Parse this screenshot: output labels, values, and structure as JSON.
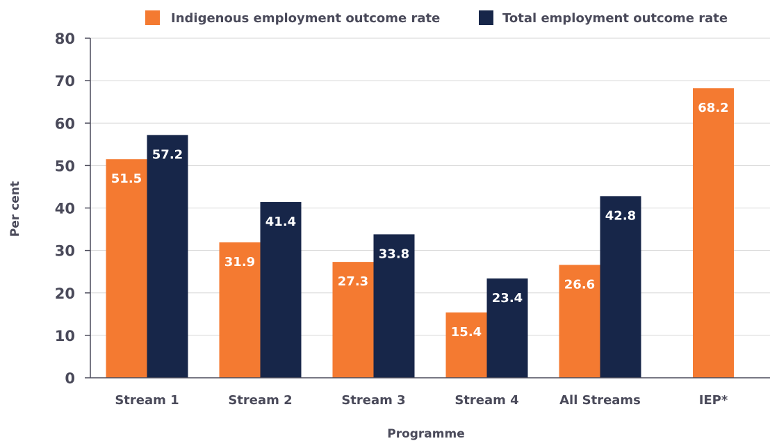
{
  "chart_data": {
    "type": "bar",
    "title": "",
    "xlabel": "Programme",
    "ylabel": "Per cent",
    "ylim": [
      0,
      80
    ],
    "yticks": [
      0,
      10,
      20,
      30,
      40,
      50,
      60,
      70,
      80
    ],
    "grid": true,
    "legend_position": "top",
    "categories": [
      "Stream 1",
      "Stream 2",
      "Stream 3",
      "Stream 4",
      "All Streams",
      "IEP*"
    ],
    "series": [
      {
        "name": "Indigenous employment outcome rate",
        "color": "#f47a31",
        "values": [
          51.5,
          31.9,
          27.3,
          15.4,
          26.6,
          68.2
        ]
      },
      {
        "name": "Total employment outcome rate",
        "color": "#172649",
        "values": [
          57.2,
          41.4,
          33.8,
          23.4,
          42.8,
          null
        ]
      }
    ]
  }
}
